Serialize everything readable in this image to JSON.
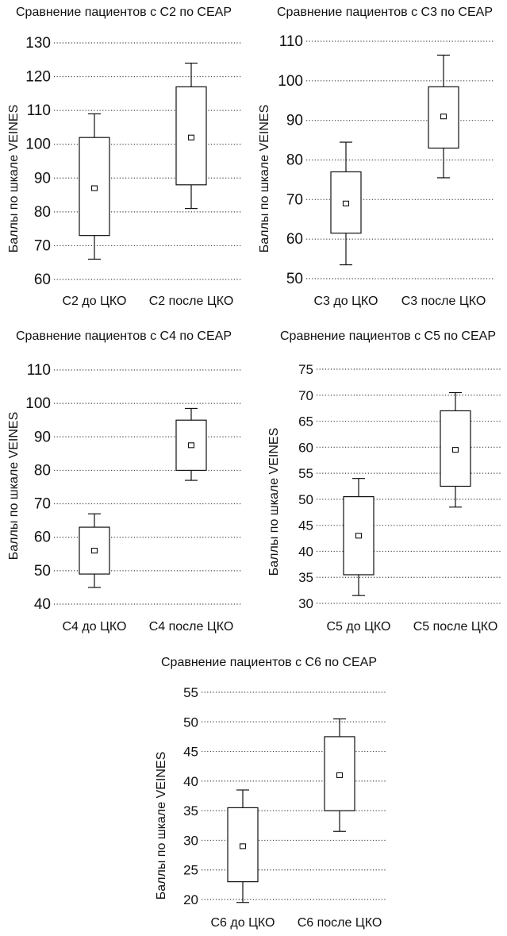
{
  "chart_data": [
    {
      "type": "box",
      "title": "Сравнение пациентов с С2 по СЕАР",
      "ylabel": "Баллы по шкале VEINES",
      "ylim": [
        60,
        130
      ],
      "yticks": [
        60,
        70,
        80,
        90,
        100,
        110,
        120,
        130
      ],
      "grid": true,
      "categories": [
        "С2 до ЦКО",
        "С2 после ЦКО"
      ],
      "boxes": [
        {
          "label": "С2 до ЦКО",
          "whisker_low": 66,
          "q1": 73,
          "median": 87,
          "q3": 102,
          "whisker_high": 109
        },
        {
          "label": "С2 после ЦКО",
          "whisker_low": 81,
          "q1": 88,
          "median": 102,
          "q3": 117,
          "whisker_high": 124
        }
      ]
    },
    {
      "type": "box",
      "title": "Сравнение пациентов с С3 по СЕАР",
      "ylabel": "Баллы по шкале VEINES",
      "ylim": [
        50,
        110
      ],
      "yticks": [
        50,
        60,
        70,
        80,
        90,
        100,
        110
      ],
      "grid": true,
      "categories": [
        "С3 до ЦКО",
        "С3 после ЦКО"
      ],
      "boxes": [
        {
          "label": "С3 до ЦКО",
          "whisker_low": 53.5,
          "q1": 61.5,
          "median": 69,
          "q3": 77,
          "whisker_high": 84.5
        },
        {
          "label": "С3 после ЦКО",
          "whisker_low": 75.5,
          "q1": 83,
          "median": 91,
          "q3": 98.5,
          "whisker_high": 106.5
        }
      ]
    },
    {
      "type": "box",
      "title": "Сравнение пациентов с С4 по СЕАР",
      "ylabel": "Баллы по шкале VEINES",
      "ylim": [
        40,
        110
      ],
      "yticks": [
        40,
        50,
        60,
        70,
        80,
        90,
        100,
        110
      ],
      "grid": true,
      "categories": [
        "С4 до ЦКО",
        "С4 после ЦКО"
      ],
      "boxes": [
        {
          "label": "С4 до ЦКО",
          "whisker_low": 45,
          "q1": 49,
          "median": 56,
          "q3": 63,
          "whisker_high": 67
        },
        {
          "label": "С4 после ЦКО",
          "whisker_low": 77,
          "q1": 80,
          "median": 87.5,
          "q3": 95,
          "whisker_high": 98.5
        }
      ]
    },
    {
      "type": "box",
      "title": "Сравнение пациентов с С5 по СЕАР",
      "ylabel": "Баллы по шкале VEINES",
      "ylim": [
        30,
        75
      ],
      "yticks": [
        30,
        35,
        40,
        45,
        50,
        55,
        60,
        65,
        70,
        75
      ],
      "grid": true,
      "categories": [
        "С5 до ЦКО",
        "С5 после ЦКО"
      ],
      "boxes": [
        {
          "label": "С5 до ЦКО",
          "whisker_low": 31.5,
          "q1": 35.5,
          "median": 43,
          "q3": 50.5,
          "whisker_high": 54
        },
        {
          "label": "С5 после ЦКО",
          "whisker_low": 48.5,
          "q1": 52.5,
          "median": 59.5,
          "q3": 67,
          "whisker_high": 70.5
        }
      ]
    },
    {
      "type": "box",
      "title": "Сравнение пациентов с С6 по СЕАР",
      "ylabel": "Баллы по шкале VEINES",
      "ylim": [
        20,
        55
      ],
      "yticks": [
        20,
        25,
        30,
        35,
        40,
        45,
        50,
        55
      ],
      "grid": true,
      "categories": [
        "С6 до ЦКО",
        "С6 после ЦКО"
      ],
      "boxes": [
        {
          "label": "С6 до ЦКО",
          "whisker_low": 19.5,
          "q1": 23,
          "median": 29,
          "q3": 35.5,
          "whisker_high": 38.5
        },
        {
          "label": "С6 после ЦКО",
          "whisker_low": 31.5,
          "q1": 35,
          "median": 41,
          "q3": 47.5,
          "whisker_high": 50.5
        }
      ]
    }
  ]
}
